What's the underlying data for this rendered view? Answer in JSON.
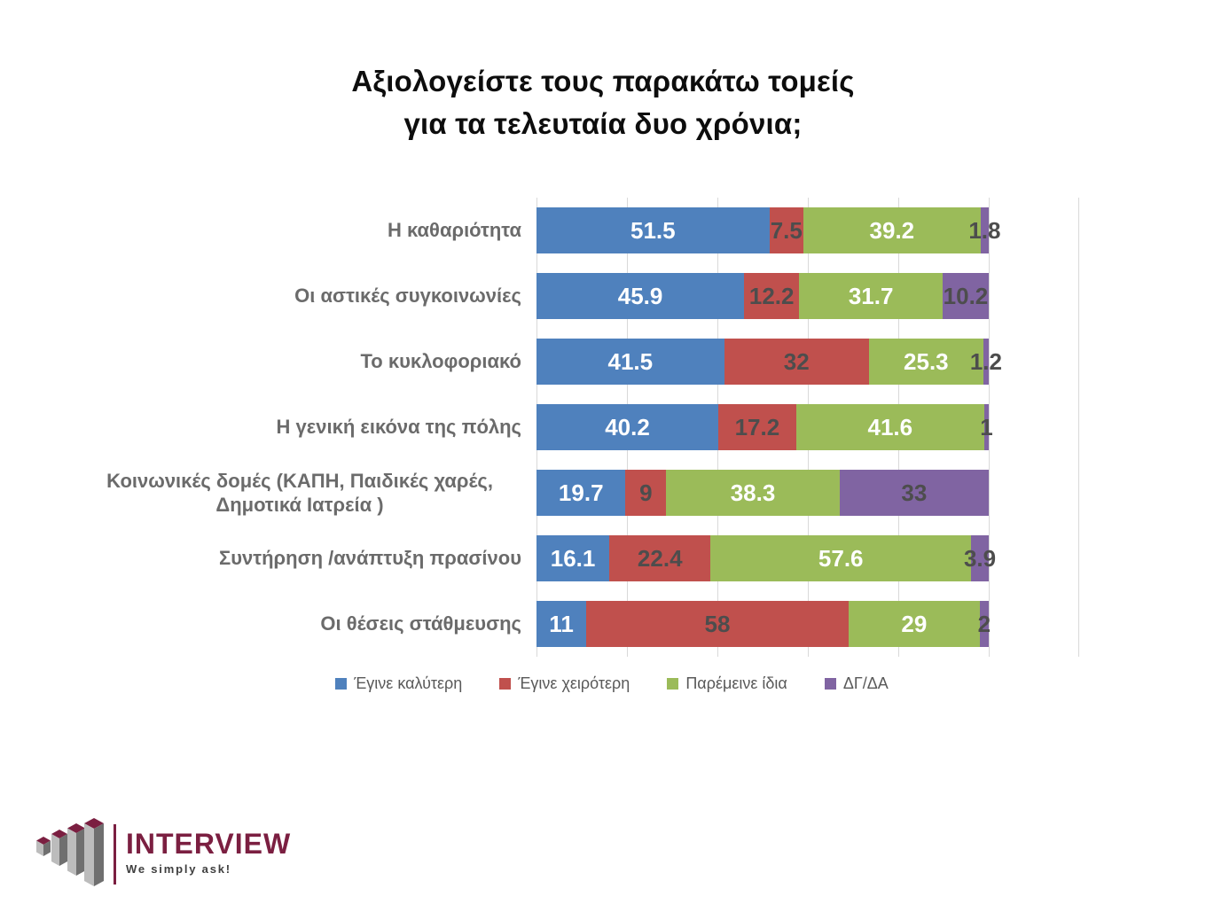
{
  "title": {
    "full": "Αξιολογείστε τους παρακάτω τομείς για τα τελευταία δυο χρόνια;"
  },
  "chart_data": {
    "type": "bar",
    "orientation": "horizontal-stacked",
    "title": "Αξιολογείστε τους παρακάτω τομείς για τα τελευταία δυο χρόνια;",
    "title_lines": [
      "Αξιολογείστε τους παρακάτω τομείς",
      "για τα τελευταία δυο χρόνια;"
    ],
    "categories": [
      "Η καθαριότητα",
      "Οι αστικές συγκοινωνίες",
      "Το κυκλοφοριακό",
      "Η γενική εικόνα της πόλης",
      "Κοινωνικές δομές (ΚΑΠΗ, Παιδικές χαρές, Δημοτικά Ιατρεία )",
      "Συντήρηση /ανάπτυξη πρασίνου",
      "Οι θέσεις στάθμευσης"
    ],
    "series": [
      {
        "name": "Έγινε καλύτερη",
        "color": "#4f81bd",
        "label_color": "#ffffff",
        "values": [
          51.5,
          45.9,
          41.5,
          40.2,
          19.7,
          16.1,
          11
        ]
      },
      {
        "name": "Έγινε χειρότερη",
        "color": "#c0504d",
        "label_color": "#4d4d4d",
        "values": [
          7.5,
          12.2,
          32,
          17.2,
          9,
          22.4,
          58
        ]
      },
      {
        "name": "Παρέμεινε ίδια",
        "color": "#9bbb59",
        "label_color": "#ffffff",
        "values": [
          39.2,
          31.7,
          25.3,
          41.6,
          38.3,
          57.6,
          29
        ]
      },
      {
        "name": "ΔΓ/ΔΑ",
        "color": "#8064a2",
        "label_color": "#4d4d4d",
        "values": [
          1.8,
          10.2,
          1.2,
          1,
          33,
          3.9,
          2
        ]
      }
    ],
    "xlim": [
      0,
      120
    ],
    "gridline_step": 20,
    "grid": true,
    "gridline_color": "#d9d9d9",
    "legend_position": "bottom"
  },
  "logo": {
    "name": "INTERVIEW",
    "tagline": "We simply ask!",
    "brand_color": "#7b1f41"
  }
}
